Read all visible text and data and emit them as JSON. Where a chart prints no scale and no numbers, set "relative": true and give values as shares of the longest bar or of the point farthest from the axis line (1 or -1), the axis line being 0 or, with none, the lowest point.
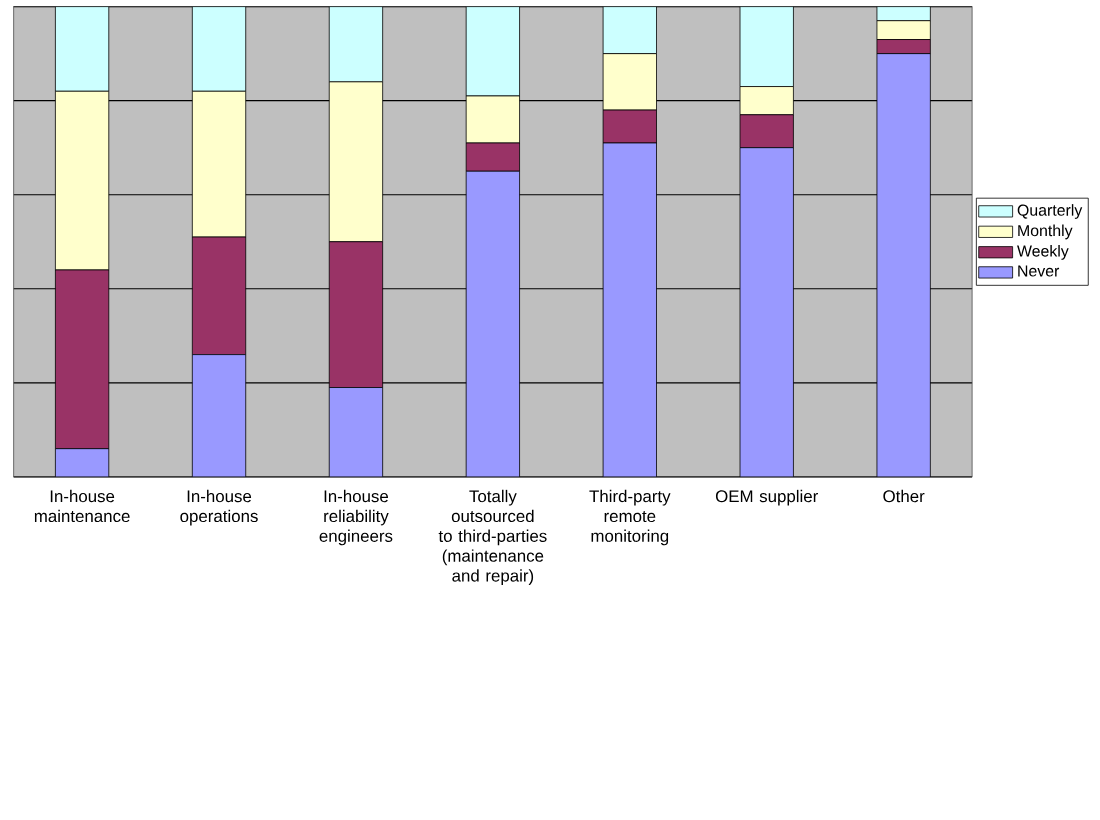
{
  "chart_data": {
    "type": "bar",
    "stacked": true,
    "relative": true,
    "grid": "y",
    "legend": "right",
    "categories": [
      "In-house maintenance",
      "In-house operations",
      "In-house reliability engineers",
      "Totally outsourced to third-parties (maintenance and repair)",
      "Third-party remote monitoring",
      "OEM supplier",
      "Other"
    ],
    "series": [
      {
        "name": "Never",
        "color": "#9999ff",
        "values": [
          0.06,
          0.26,
          0.19,
          0.65,
          0.71,
          0.7,
          0.9
        ]
      },
      {
        "name": "Weekly",
        "color": "#993366",
        "values": [
          0.38,
          0.25,
          0.31,
          0.06,
          0.07,
          0.07,
          0.03
        ]
      },
      {
        "name": "Monthly",
        "color": "#ffffcc",
        "values": [
          0.38,
          0.31,
          0.34,
          0.1,
          0.12,
          0.06,
          0.04
        ]
      },
      {
        "name": "Quarterly",
        "color": "#ccffff",
        "values": [
          0.18,
          0.18,
          0.16,
          0.19,
          0.1,
          0.17,
          0.03
        ]
      }
    ]
  }
}
